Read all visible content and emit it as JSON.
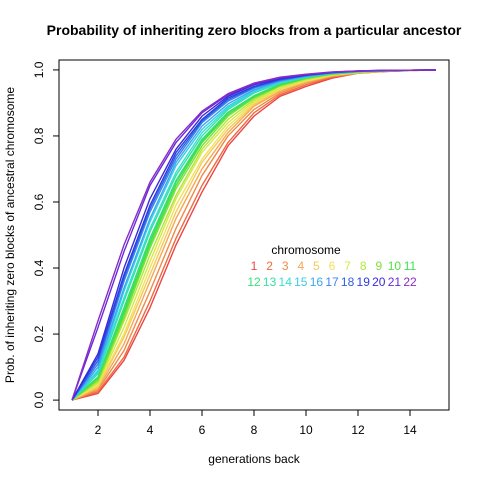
{
  "chart_data": {
    "type": "line",
    "title": "Probability of inheriting zero blocks from a particular ancestor",
    "xlabel": "generations back",
    "ylabel": "Prob. of inheriting zero blocks of ancestral chromosome",
    "xlim": [
      0.5,
      15.5
    ],
    "ylim": [
      -0.03,
      1.03
    ],
    "xticks": [
      2,
      4,
      6,
      8,
      10,
      12,
      14
    ],
    "yticks": [
      0.0,
      0.2,
      0.4,
      0.6,
      0.8,
      1.0
    ],
    "x": [
      1,
      2,
      3,
      4,
      5,
      6,
      7,
      8,
      9,
      10,
      11,
      12,
      13,
      14,
      15
    ],
    "legend": {
      "title": "chromosome",
      "placement": "center-right"
    },
    "series": [
      {
        "name": "1",
        "color": "#ee4444",
        "values": [
          0.0,
          0.02,
          0.12,
          0.28,
          0.47,
          0.63,
          0.77,
          0.86,
          0.92,
          0.95,
          0.975,
          0.99,
          0.995,
          0.998,
          1.0
        ]
      },
      {
        "name": "2",
        "color": "#ef6a3f",
        "values": [
          0.0,
          0.025,
          0.13,
          0.3,
          0.49,
          0.65,
          0.78,
          0.87,
          0.925,
          0.955,
          0.978,
          0.99,
          0.995,
          0.998,
          1.0
        ]
      },
      {
        "name": "3",
        "color": "#f08a48",
        "values": [
          0.0,
          0.03,
          0.15,
          0.33,
          0.52,
          0.68,
          0.8,
          0.88,
          0.93,
          0.96,
          0.98,
          0.99,
          0.996,
          0.998,
          1.0
        ]
      },
      {
        "name": "4",
        "color": "#f5a850",
        "values": [
          0.0,
          0.035,
          0.17,
          0.36,
          0.55,
          0.7,
          0.81,
          0.89,
          0.935,
          0.962,
          0.982,
          0.991,
          0.996,
          0.998,
          1.0
        ]
      },
      {
        "name": "5",
        "color": "#f7c85a",
        "values": [
          0.0,
          0.04,
          0.19,
          0.38,
          0.57,
          0.72,
          0.82,
          0.895,
          0.94,
          0.965,
          0.983,
          0.992,
          0.996,
          0.998,
          1.0
        ]
      },
      {
        "name": "6",
        "color": "#f3e05a",
        "values": [
          0.0,
          0.045,
          0.2,
          0.4,
          0.59,
          0.73,
          0.83,
          0.9,
          0.942,
          0.967,
          0.984,
          0.992,
          0.996,
          0.998,
          1.0
        ]
      },
      {
        "name": "7",
        "color": "#d6e848",
        "values": [
          0.0,
          0.05,
          0.22,
          0.42,
          0.61,
          0.75,
          0.84,
          0.905,
          0.945,
          0.97,
          0.985,
          0.993,
          0.997,
          0.999,
          1.0
        ]
      },
      {
        "name": "8",
        "color": "#aee83a",
        "values": [
          0.0,
          0.055,
          0.24,
          0.44,
          0.62,
          0.76,
          0.85,
          0.91,
          0.95,
          0.972,
          0.986,
          0.993,
          0.997,
          0.999,
          1.0
        ]
      },
      {
        "name": "9",
        "color": "#7fe03a",
        "values": [
          0.0,
          0.06,
          0.25,
          0.46,
          0.64,
          0.77,
          0.86,
          0.915,
          0.952,
          0.974,
          0.987,
          0.994,
          0.997,
          0.999,
          1.0
        ]
      },
      {
        "name": "10",
        "color": "#52e040",
        "values": [
          0.0,
          0.065,
          0.26,
          0.47,
          0.65,
          0.78,
          0.865,
          0.918,
          0.954,
          0.975,
          0.988,
          0.994,
          0.997,
          0.999,
          1.0
        ]
      },
      {
        "name": "11",
        "color": "#3ae052",
        "values": [
          0.0,
          0.07,
          0.27,
          0.48,
          0.66,
          0.785,
          0.87,
          0.92,
          0.956,
          0.976,
          0.988,
          0.994,
          0.997,
          0.999,
          1.0
        ]
      },
      {
        "name": "12",
        "color": "#36e07a",
        "values": [
          0.0,
          0.07,
          0.28,
          0.49,
          0.665,
          0.79,
          0.872,
          0.922,
          0.957,
          0.977,
          0.989,
          0.995,
          0.998,
          0.999,
          1.0
        ]
      },
      {
        "name": "13",
        "color": "#36e0a8",
        "values": [
          0.0,
          0.08,
          0.3,
          0.51,
          0.68,
          0.8,
          0.88,
          0.93,
          0.96,
          0.978,
          0.989,
          0.995,
          0.998,
          0.999,
          1.0
        ]
      },
      {
        "name": "14",
        "color": "#36e0d0",
        "values": [
          0.0,
          0.085,
          0.31,
          0.52,
          0.69,
          0.81,
          0.885,
          0.933,
          0.962,
          0.979,
          0.99,
          0.995,
          0.998,
          0.999,
          1.0
        ]
      },
      {
        "name": "15",
        "color": "#38cde8",
        "values": [
          0.0,
          0.09,
          0.33,
          0.54,
          0.71,
          0.82,
          0.89,
          0.936,
          0.964,
          0.98,
          0.99,
          0.995,
          0.998,
          0.999,
          1.0
        ]
      },
      {
        "name": "16",
        "color": "#3aa8ec",
        "values": [
          0.0,
          0.1,
          0.34,
          0.55,
          0.72,
          0.83,
          0.897,
          0.94,
          0.966,
          0.981,
          0.991,
          0.996,
          0.998,
          0.999,
          1.0
        ]
      },
      {
        "name": "17",
        "color": "#3a86ec",
        "values": [
          0.0,
          0.11,
          0.36,
          0.57,
          0.73,
          0.84,
          0.905,
          0.945,
          0.968,
          0.982,
          0.991,
          0.996,
          0.998,
          0.999,
          1.0
        ]
      },
      {
        "name": "18",
        "color": "#2f5fe8",
        "values": [
          0.0,
          0.12,
          0.37,
          0.58,
          0.74,
          0.845,
          0.91,
          0.948,
          0.97,
          0.983,
          0.992,
          0.996,
          0.998,
          0.999,
          1.0
        ]
      },
      {
        "name": "19",
        "color": "#2a3ee0",
        "values": [
          0.0,
          0.13,
          0.38,
          0.59,
          0.75,
          0.85,
          0.915,
          0.95,
          0.972,
          0.984,
          0.992,
          0.996,
          0.998,
          0.999,
          1.0
        ]
      },
      {
        "name": "20",
        "color": "#3a2ad8",
        "values": [
          0.0,
          0.14,
          0.4,
          0.61,
          0.76,
          0.86,
          0.92,
          0.955,
          0.974,
          0.985,
          0.993,
          0.997,
          0.998,
          0.999,
          1.0
        ]
      },
      {
        "name": "21",
        "color": "#6a2ad8",
        "values": [
          0.0,
          0.22,
          0.45,
          0.65,
          0.78,
          0.87,
          0.925,
          0.957,
          0.976,
          0.986,
          0.993,
          0.997,
          0.999,
          0.999,
          1.0
        ]
      },
      {
        "name": "22",
        "color": "#8a2cc8",
        "values": [
          0.0,
          0.24,
          0.47,
          0.66,
          0.79,
          0.875,
          0.928,
          0.96,
          0.978,
          0.987,
          0.994,
          0.997,
          0.999,
          0.999,
          1.0
        ]
      }
    ]
  }
}
